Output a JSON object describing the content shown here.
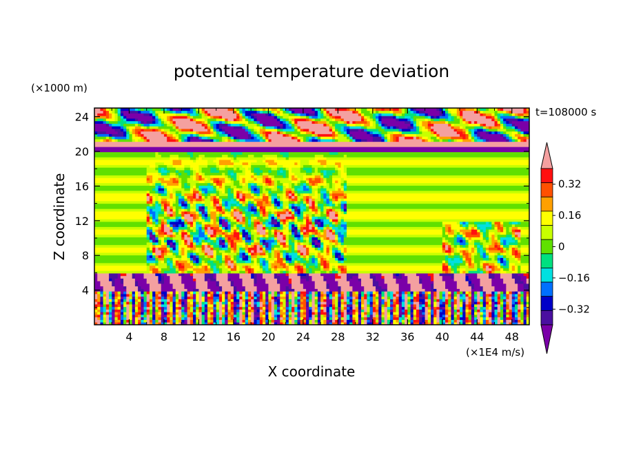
{
  "chart_data": {
    "type": "heatmap",
    "title": "potential temperature deviation",
    "time_label": "t=108000 s",
    "xlabel": "X coordinate",
    "ylabel": "Z coordinate",
    "x_unit": "(×1E4 m/s)",
    "y_unit": "(×1000 m)",
    "xlim": [
      0,
      50
    ],
    "ylim": [
      0,
      25
    ],
    "x_ticks": [
      4,
      8,
      12,
      16,
      20,
      24,
      28,
      32,
      36,
      40,
      44,
      48
    ],
    "y_ticks": [
      4,
      8,
      12,
      16,
      20,
      24
    ],
    "colorbar": {
      "levels": [
        -0.48,
        -0.4,
        -0.32,
        -0.24,
        -0.16,
        -0.08,
        0,
        0.08,
        0.16,
        0.24,
        0.32,
        0.4
      ],
      "labels": [
        "0.32",
        "0.16",
        "0",
        "−0.16",
        "−0.32"
      ],
      "label_values": [
        0.32,
        0.16,
        0,
        -0.16,
        -0.32
      ],
      "colors": [
        "#7a00a8",
        "#4a10a0",
        "#0000c8",
        "#0070ff",
        "#00e0e0",
        "#00e080",
        "#60e000",
        "#c8ff00",
        "#ffff00",
        "#ffa000",
        "#ff5000",
        "#ff1010",
        "#f4a0a0"
      ],
      "extend": "both"
    },
    "bands": [
      {
        "z": [
          0,
          4
        ],
        "pattern": "oscillatory mixed, all levels"
      },
      {
        "z": [
          4,
          6
        ],
        "pattern": "purple and pink, strong negative/positive"
      },
      {
        "z": [
          6,
          20
        ],
        "pattern": "horizontal green/yellow stripes near zero, plumes at x 8-28"
      },
      {
        "z": [
          20,
          21
        ],
        "pattern": "purple and pink layer"
      },
      {
        "z": [
          21,
          25
        ],
        "pattern": "pink and purple blobs, strong positive/negative"
      }
    ]
  }
}
